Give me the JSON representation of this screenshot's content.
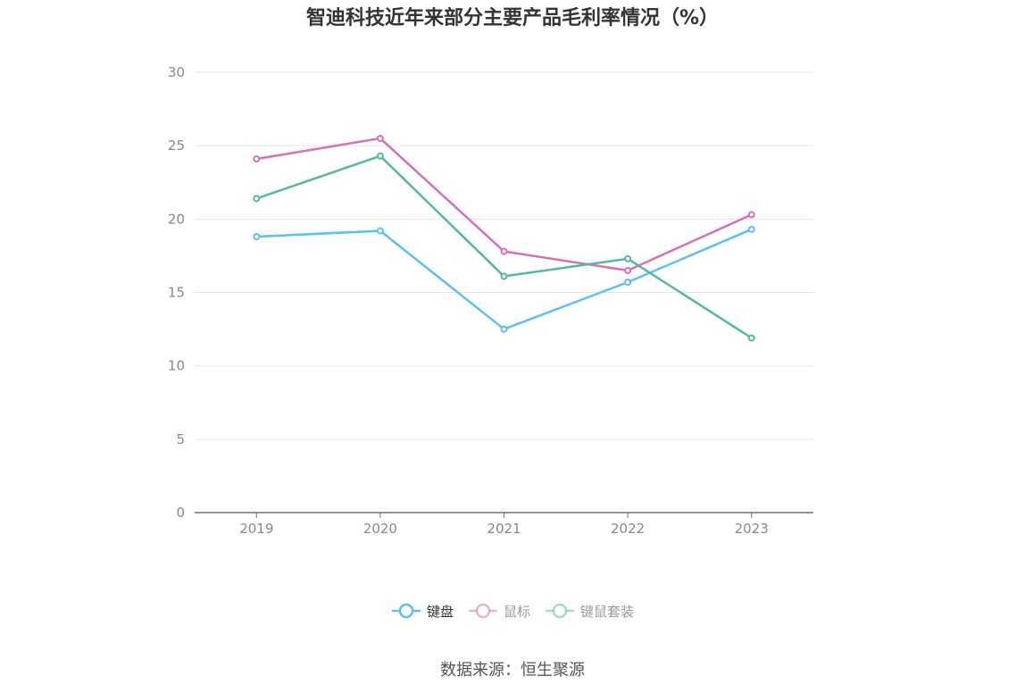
{
  "title": "智迪科技近年来部分主要产品毛利率情况（%）",
  "source": "数据来源：恒生聚源",
  "colors": {
    "grid": "#e6e6e6",
    "axis": "#6e7079",
    "tick_text": "#888888",
    "legend_inactive_text": "#999999",
    "legend_active_text": "#333333"
  },
  "chart_data": {
    "type": "line",
    "title": "智迪科技近年来部分主要产品毛利率情况（%）",
    "xlabel": "",
    "ylabel": "",
    "categories": [
      "2019",
      "2020",
      "2021",
      "2022",
      "2023"
    ],
    "ylim": [
      0,
      30
    ],
    "yticks": [
      0,
      5,
      10,
      15,
      20,
      25,
      30
    ],
    "grid": true,
    "legend_position": "bottom",
    "series": [
      {
        "name": "键盘",
        "color": "#5bc0f0",
        "values": [
          18.8,
          19.2,
          12.5,
          15.7,
          19.3
        ]
      },
      {
        "name": "鼠标",
        "color": "#d46fb5",
        "values": [
          24.1,
          25.5,
          17.8,
          16.5,
          20.3
        ]
      },
      {
        "name": "键鼠套装",
        "color": "#52b89e",
        "values": [
          21.4,
          24.3,
          16.1,
          17.3,
          11.9
        ]
      }
    ]
  }
}
